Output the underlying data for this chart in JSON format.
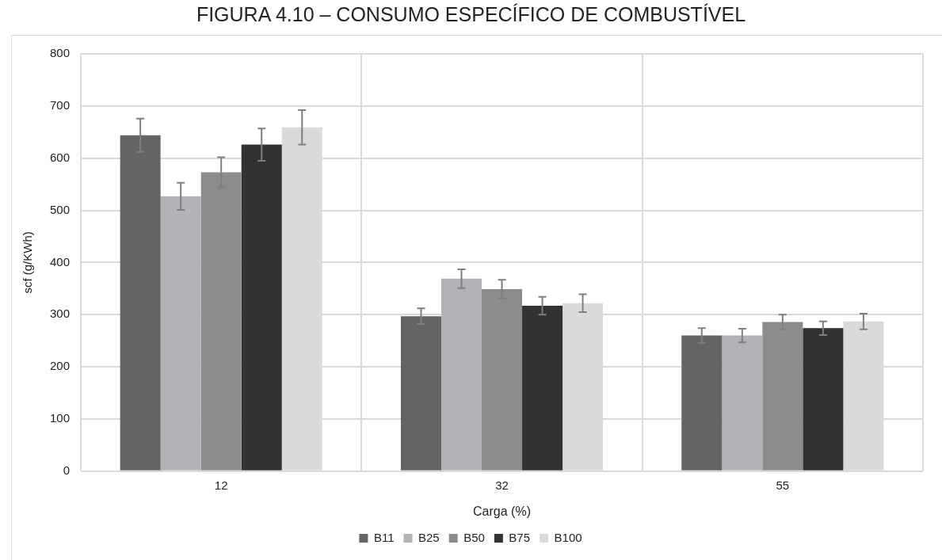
{
  "chart_data": {
    "type": "bar",
    "title": "FIGURA 4.10 – CONSUMO ESPECÍFICO DE COMBUSTÍVEL",
    "xlabel": "Carga (%)",
    "ylabel": "scf (g/KWh)",
    "categories": [
      "12",
      "32",
      "55"
    ],
    "series": [
      {
        "name": "B11",
        "color": "#636466",
        "values": [
          644,
          297,
          260
        ],
        "errors": [
          32,
          15,
          14
        ]
      },
      {
        "name": "B25",
        "color": "#b2b3b6",
        "values": [
          527,
          369,
          260
        ],
        "errors": [
          26,
          18,
          13
        ]
      },
      {
        "name": "B50",
        "color": "#8b8c8e",
        "values": [
          573,
          349,
          286
        ],
        "errors": [
          29,
          18,
          14
        ]
      },
      {
        "name": "B75",
        "color": "#333132",
        "values": [
          626,
          317,
          274
        ],
        "errors": [
          31,
          17,
          13
        ]
      },
      {
        "name": "B100",
        "color": "#d9dadb",
        "values": [
          659,
          322,
          287
        ],
        "errors": [
          33,
          17,
          15
        ]
      }
    ],
    "ylim": [
      0,
      800
    ],
    "yticks": [
      0,
      100,
      200,
      300,
      400,
      500,
      600,
      700,
      800
    ],
    "grid": true,
    "legend": "bottom"
  }
}
